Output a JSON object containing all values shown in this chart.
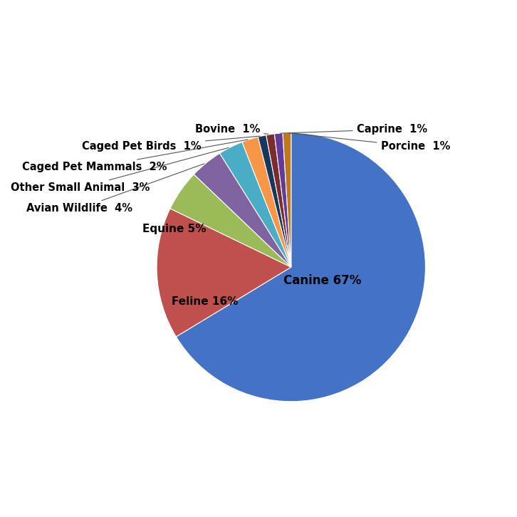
{
  "labels": [
    "Canine",
    "Feline",
    "Equine",
    "Avian Wildlife",
    "Other Small Animal",
    "Caged Pet Mammals",
    "Caged Pet Birds",
    "Bovine",
    "Caprine",
    "Porcine"
  ],
  "values": [
    67,
    16,
    5,
    4,
    3,
    2,
    1,
    1,
    1,
    1
  ],
  "colors": [
    "#4472C4",
    "#C0504D",
    "#9BBB59",
    "#8064A2",
    "#4BACC6",
    "#F79646",
    "#17375E",
    "#7B2C2C",
    "#603B99",
    "#C07820"
  ],
  "startangle": 90,
  "figsize": [
    7.26,
    7.26
  ],
  "dpi": 100,
  "inside_labels": {
    "Canine": [
      0.18,
      -0.08,
      12
    ],
    "Feline": [
      -0.5,
      -0.2,
      11
    ],
    "Equine": [
      -0.68,
      0.22,
      11
    ]
  },
  "external_label_positions": {
    "Avian Wildlife": [
      -0.28,
      0.175,
      "right",
      "center"
    ],
    "Other Small Animal": [
      -0.27,
      0.125,
      "right",
      "center"
    ],
    "Caged Pet Mammals": [
      -0.25,
      0.078,
      "right",
      "center"
    ],
    "Caged Pet Birds": [
      -0.18,
      0.04,
      "right",
      "center"
    ],
    "Bovine": [
      -0.07,
      0.005,
      "right",
      "center"
    ],
    "Caprine": [
      0.55,
      0.068,
      "left",
      "center"
    ],
    "Porcine": [
      0.55,
      0.042,
      "left",
      "center"
    ]
  }
}
